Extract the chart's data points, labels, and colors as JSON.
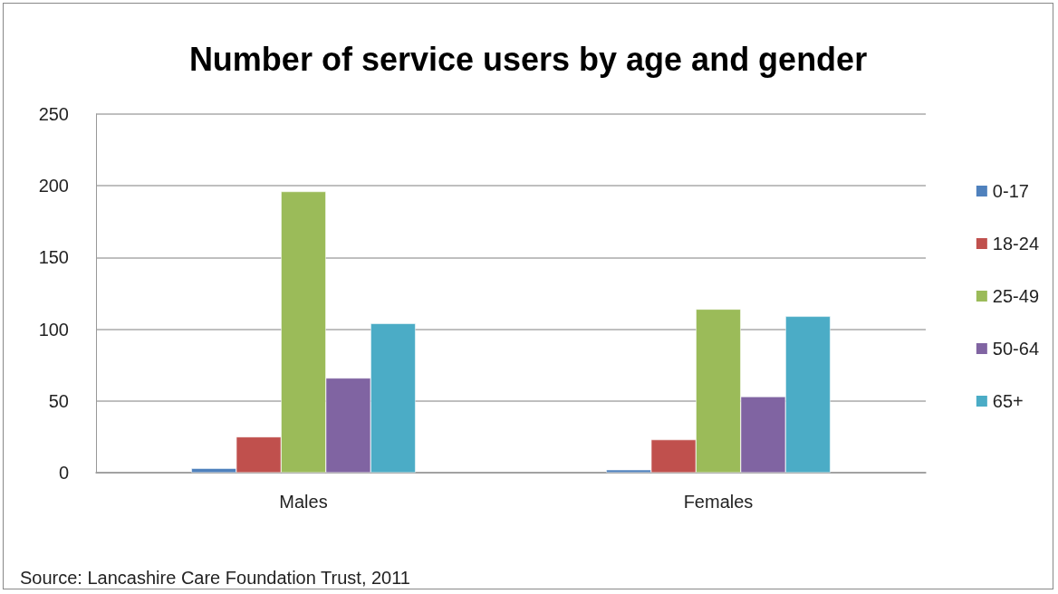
{
  "chart_data": {
    "type": "bar",
    "title": "Number of service users by age and gender",
    "categories": [
      "Males",
      "Females"
    ],
    "series": [
      {
        "name": "0-17",
        "color": "#4f81bd",
        "values": [
          3,
          2
        ]
      },
      {
        "name": "18-24",
        "color": "#c0504d",
        "values": [
          25,
          23
        ]
      },
      {
        "name": "25-49",
        "color": "#9bbb59",
        "values": [
          196,
          114
        ]
      },
      {
        "name": "50-64",
        "color": "#8064a2",
        "values": [
          66,
          53
        ]
      },
      {
        "name": "65+",
        "color": "#4bacc6",
        "values": [
          104,
          109
        ]
      }
    ],
    "ylim": [
      0,
      250
    ],
    "yticks": [
      0,
      50,
      100,
      150,
      200,
      250
    ],
    "grid": "y",
    "legend": "right",
    "annotations": [
      "Source: Lancashire Care Foundation Trust, 2011"
    ]
  }
}
